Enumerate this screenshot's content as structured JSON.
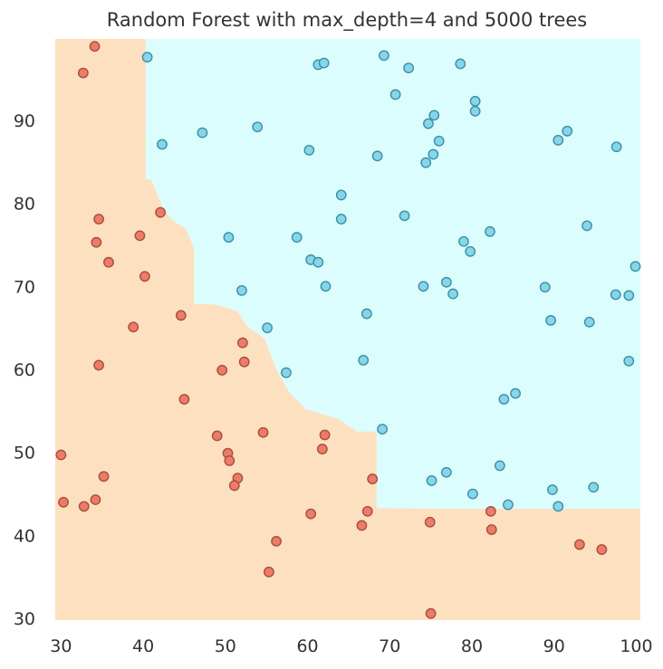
{
  "chart_data": {
    "type": "scatter",
    "title": "Random Forest with max_depth=4 and 5000 trees",
    "xlabel": "",
    "ylabel": "",
    "xlim": [
      29.3,
      100.5
    ],
    "ylim": [
      29.8,
      99.8
    ],
    "xticks": [
      30,
      40,
      50,
      60,
      70,
      80,
      90,
      100
    ],
    "yticks": [
      30,
      40,
      50,
      60,
      70,
      80,
      90
    ],
    "grid": false,
    "legend": false,
    "colors": {
      "class_0_region": "#fde0c0",
      "class_1_region": "#dcfdfd",
      "class_0_point": "#ee7b68",
      "class_1_point": "#85d6ea",
      "point_edge_0": "#a4503f",
      "point_edge_1": "#3f8fa4"
    },
    "decision_boundary": [
      [
        40.3,
        99.8
      ],
      [
        40.3,
        83.0
      ],
      [
        41.0,
        82.8
      ],
      [
        42.5,
        79.2
      ],
      [
        43.5,
        78.0
      ],
      [
        45.2,
        76.9
      ],
      [
        46.2,
        74.6
      ],
      [
        46.2,
        67.9
      ],
      [
        48.8,
        67.8
      ],
      [
        51.5,
        67.0
      ],
      [
        52.5,
        65.3
      ],
      [
        54.8,
        63.7
      ],
      [
        56.2,
        60.0
      ],
      [
        57.8,
        57.2
      ],
      [
        59.8,
        55.2
      ],
      [
        63.8,
        54.0
      ],
      [
        66.0,
        52.5
      ],
      [
        68.4,
        52.5
      ],
      [
        68.4,
        43.3
      ],
      [
        75.0,
        43.2
      ],
      [
        100.5,
        43.2
      ]
    ],
    "series": [
      {
        "points": [
          [
            34.1,
            98.9
          ],
          [
            32.7,
            95.7
          ],
          [
            34.6,
            78.1
          ],
          [
            34.3,
            75.3
          ],
          [
            35.8,
            72.9
          ],
          [
            42.1,
            78.9
          ],
          [
            39.6,
            76.1
          ],
          [
            40.2,
            71.2
          ],
          [
            38.8,
            65.1
          ],
          [
            44.6,
            66.5
          ],
          [
            34.6,
            60.5
          ],
          [
            49.6,
            59.9
          ],
          [
            52.1,
            63.2
          ],
          [
            52.3,
            60.9
          ],
          [
            45.0,
            56.4
          ],
          [
            30.0,
            49.7
          ],
          [
            30.3,
            44.0
          ],
          [
            32.8,
            43.5
          ],
          [
            34.2,
            44.3
          ],
          [
            35.2,
            47.1
          ],
          [
            49.0,
            52.0
          ],
          [
            50.3,
            49.9
          ],
          [
            50.5,
            49.0
          ],
          [
            51.5,
            46.9
          ],
          [
            51.1,
            46.0
          ],
          [
            54.6,
            52.4
          ],
          [
            62.1,
            52.1
          ],
          [
            61.8,
            50.4
          ],
          [
            60.4,
            42.6
          ],
          [
            56.2,
            39.3
          ],
          [
            55.3,
            35.6
          ],
          [
            66.6,
            41.2
          ],
          [
            67.3,
            42.9
          ],
          [
            67.9,
            46.8
          ],
          [
            74.9,
            41.6
          ],
          [
            75.0,
            30.6
          ],
          [
            82.3,
            42.9
          ],
          [
            82.4,
            40.7
          ],
          [
            93.1,
            38.9
          ],
          [
            95.8,
            38.3
          ]
        ]
      },
      {
        "points": [
          [
            40.5,
            97.6
          ],
          [
            42.3,
            87.1
          ],
          [
            47.2,
            88.5
          ],
          [
            53.9,
            89.2
          ],
          [
            61.3,
            96.7
          ],
          [
            62.0,
            96.9
          ],
          [
            69.3,
            97.8
          ],
          [
            70.7,
            93.1
          ],
          [
            72.3,
            96.3
          ],
          [
            78.6,
            96.8
          ],
          [
            80.4,
            92.3
          ],
          [
            80.4,
            91.1
          ],
          [
            75.4,
            90.6
          ],
          [
            74.7,
            89.6
          ],
          [
            76.0,
            87.5
          ],
          [
            75.3,
            85.9
          ],
          [
            74.4,
            84.9
          ],
          [
            68.5,
            85.7
          ],
          [
            60.2,
            86.4
          ],
          [
            91.6,
            88.7
          ],
          [
            90.5,
            87.6
          ],
          [
            97.6,
            86.8
          ],
          [
            64.1,
            81.0
          ],
          [
            64.1,
            78.1
          ],
          [
            71.8,
            78.5
          ],
          [
            50.4,
            75.9
          ],
          [
            58.7,
            75.9
          ],
          [
            60.4,
            73.2
          ],
          [
            61.3,
            72.9
          ],
          [
            62.2,
            70.0
          ],
          [
            52.0,
            69.5
          ],
          [
            79.0,
            75.4
          ],
          [
            79.8,
            74.2
          ],
          [
            82.2,
            76.6
          ],
          [
            94.0,
            77.3
          ],
          [
            74.1,
            70.0
          ],
          [
            76.9,
            70.5
          ],
          [
            77.7,
            69.1
          ],
          [
            88.9,
            69.9
          ],
          [
            97.5,
            69.0
          ],
          [
            99.1,
            68.9
          ],
          [
            99.9,
            72.4
          ],
          [
            67.2,
            66.7
          ],
          [
            55.1,
            65.0
          ],
          [
            57.4,
            59.6
          ],
          [
            66.8,
            61.1
          ],
          [
            89.6,
            65.9
          ],
          [
            94.3,
            65.7
          ],
          [
            99.1,
            61.0
          ],
          [
            85.3,
            57.1
          ],
          [
            83.9,
            56.4
          ],
          [
            69.1,
            52.8
          ],
          [
            75.1,
            46.6
          ],
          [
            76.9,
            47.6
          ],
          [
            83.4,
            48.4
          ],
          [
            80.1,
            45.0
          ],
          [
            84.4,
            43.7
          ],
          [
            89.8,
            45.5
          ],
          [
            90.5,
            43.5
          ],
          [
            94.8,
            45.8
          ]
        ]
      }
    ]
  }
}
